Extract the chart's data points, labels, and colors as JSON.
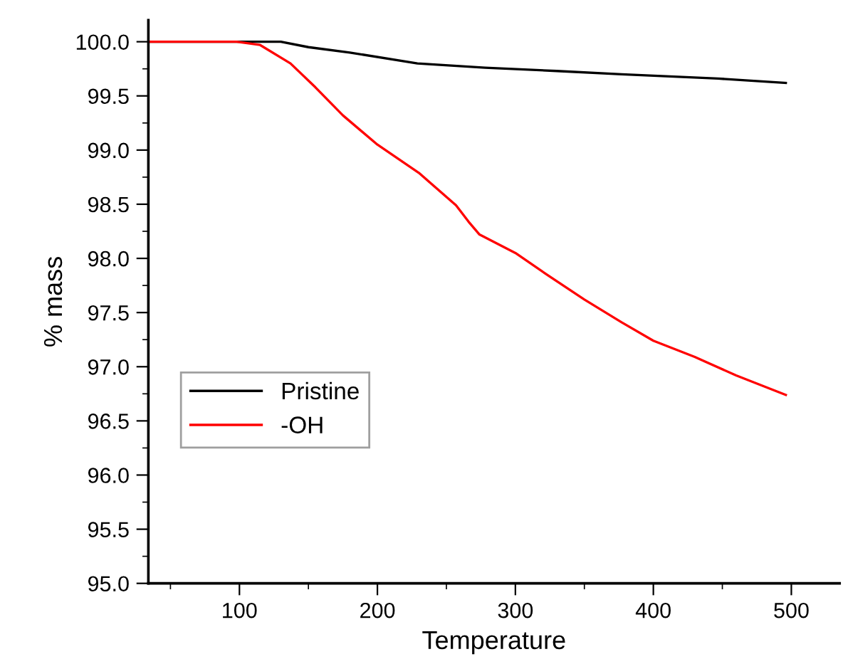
{
  "chart_data": {
    "type": "line",
    "xlabel": "Temperature",
    "ylabel": "% mass",
    "xlim": [
      34,
      535
    ],
    "ylim": [
      95.0,
      100.2
    ],
    "xticks": [
      100,
      200,
      300,
      400,
      500
    ],
    "yticks": [
      {
        "value": 95,
        "label": "95.0"
      },
      {
        "value": 95.5,
        "label": "95.5"
      },
      {
        "value": 96,
        "label": "96.0"
      },
      {
        "value": 96.5,
        "label": "96.5"
      },
      {
        "value": 97,
        "label": "97.0"
      },
      {
        "value": 97.5,
        "label": "97.5"
      },
      {
        "value": 98,
        "label": "98.0"
      },
      {
        "value": 98.5,
        "label": "98.5"
      },
      {
        "value": 99,
        "label": "99.0"
      },
      {
        "value": 99.5,
        "label": "99.5"
      },
      {
        "value": 100,
        "label": "100.0"
      }
    ],
    "legend": "bottom left",
    "grid": false,
    "marker": "none",
    "line_style": "solid",
    "series": [
      {
        "name": "Pristine",
        "color": "#000000",
        "x": [
          34,
          100,
          130,
          150,
          180,
          229,
          278,
          330,
          377,
          447,
          496
        ],
        "values": [
          100.0,
          100.0,
          100.0,
          99.95,
          99.9,
          99.8,
          99.76,
          99.73,
          99.7,
          99.66,
          99.62
        ]
      },
      {
        "name": "-OH",
        "color": "#ff0000",
        "x": [
          34,
          98,
          115,
          137,
          155,
          175,
          200,
          230,
          257,
          266,
          274,
          300,
          324,
          350,
          377,
          400,
          430,
          460,
          496
        ],
        "values": [
          100.0,
          100.0,
          99.97,
          99.8,
          99.58,
          99.32,
          99.05,
          98.79,
          98.49,
          98.34,
          98.22,
          98.05,
          97.84,
          97.62,
          97.41,
          97.24,
          97.09,
          96.92,
          96.74
        ]
      }
    ]
  }
}
